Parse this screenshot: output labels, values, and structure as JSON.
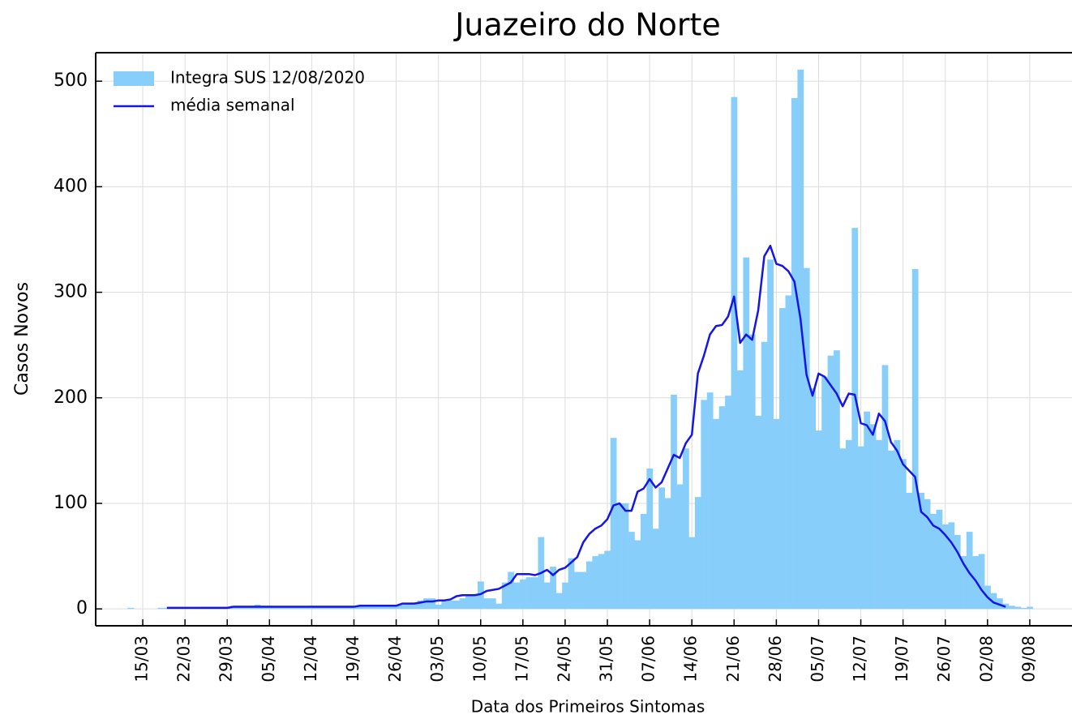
{
  "chart_data": {
    "type": "bar_line",
    "title": "Juazeiro do Norte",
    "xlabel": "Data dos Primeiros Sintomas",
    "ylabel": "Casos Novos",
    "categories": [
      null,
      null,
      "15/03",
      null,
      null,
      null,
      null,
      null,
      null,
      "22/03",
      null,
      null,
      null,
      null,
      null,
      null,
      "29/03",
      null,
      null,
      null,
      null,
      null,
      null,
      "05/04",
      null,
      null,
      null,
      null,
      null,
      null,
      "12/04",
      null,
      null,
      null,
      null,
      null,
      null,
      "19/04",
      null,
      null,
      null,
      null,
      null,
      null,
      "26/04",
      null,
      null,
      null,
      null,
      null,
      null,
      "03/05",
      null,
      null,
      null,
      null,
      null,
      null,
      "10/05",
      null,
      null,
      null,
      null,
      null,
      null,
      "17/05",
      null,
      null,
      null,
      null,
      null,
      null,
      "24/05",
      null,
      null,
      null,
      null,
      null,
      null,
      "31/05",
      null,
      null,
      null,
      null,
      null,
      null,
      "07/06",
      null,
      null,
      null,
      null,
      null,
      null,
      "14/06",
      null,
      null,
      null,
      null,
      null,
      null,
      "21/06",
      null,
      null,
      null,
      null,
      null,
      null,
      "28/06",
      null,
      null,
      null,
      null,
      null,
      null,
      "05/07",
      null,
      null,
      null,
      null,
      null,
      null,
      "12/07",
      null,
      null,
      null,
      null,
      null,
      null,
      "19/07",
      null,
      null,
      null,
      null,
      null,
      null,
      "26/07",
      null,
      null,
      null,
      null,
      null,
      null,
      "02/08",
      null,
      null,
      null,
      null,
      null,
      null,
      "09/08"
    ],
    "series": [
      {
        "name": "Integra SUS 12/08/2020",
        "kind": "bar",
        "color": "#87cefa",
        "values": [
          1,
          0,
          0,
          0,
          0,
          1,
          1,
          1,
          1,
          1,
          1,
          1,
          2,
          2,
          2,
          2,
          2,
          3,
          3,
          3,
          3,
          4,
          3,
          3,
          2,
          2,
          2,
          2,
          2,
          2,
          3,
          3,
          3,
          3,
          3,
          3,
          3,
          3,
          3,
          4,
          4,
          3,
          3,
          3,
          3,
          4,
          5,
          6,
          8,
          10,
          10,
          4,
          7,
          8,
          8,
          10,
          12,
          14,
          26,
          10,
          10,
          5,
          25,
          35,
          25,
          28,
          30,
          30,
          68,
          25,
          40,
          15,
          25,
          48,
          35,
          35,
          45,
          50,
          52,
          55,
          162,
          100,
          100,
          73,
          65,
          90,
          133,
          76,
          115,
          105,
          203,
          118,
          152,
          68,
          106,
          198,
          205,
          180,
          192,
          202,
          485,
          226,
          333,
          260,
          183,
          253,
          331,
          180,
          285,
          297,
          484,
          511,
          323,
          209,
          169,
          220,
          240,
          245,
          152,
          160,
          361,
          154,
          187,
          175,
          160,
          231,
          150,
          160,
          142,
          110,
          322,
          110,
          104,
          90,
          94,
          80,
          82,
          70,
          50,
          73,
          50,
          52,
          22,
          15,
          10,
          5,
          3,
          2,
          1,
          2
        ]
      },
      {
        "name": "média  semanal",
        "kind": "line",
        "color": "#1515e6",
        "values": [
          null,
          null,
          null,
          null,
          null,
          null,
          1,
          1,
          1,
          1,
          1,
          1,
          1,
          1,
          1,
          1,
          1,
          2,
          2,
          2,
          2,
          2,
          2,
          2,
          2,
          2,
          2,
          2,
          2,
          2,
          2,
          2,
          2,
          2,
          2,
          2,
          2,
          2,
          3,
          3,
          3,
          3,
          3,
          3,
          3,
          5,
          5,
          5,
          6,
          7,
          7,
          8,
          8,
          9,
          12,
          13,
          13,
          13,
          14,
          17,
          18,
          19,
          22,
          25,
          33,
          33,
          33,
          32,
          34,
          37,
          32,
          37,
          39,
          44,
          49,
          63,
          71,
          76,
          79,
          85,
          98,
          100,
          93,
          93,
          111,
          114,
          123,
          115,
          120,
          133,
          146,
          143,
          157,
          165,
          223,
          240,
          260,
          268,
          269,
          277,
          296,
          252,
          260,
          255,
          283,
          334,
          344,
          327,
          325,
          320,
          310,
          275,
          222,
          202,
          223,
          220,
          212,
          204,
          192,
          204,
          203,
          176,
          174,
          165,
          185,
          178,
          158,
          150,
          137,
          131,
          125,
          92,
          87,
          79,
          76,
          70,
          63,
          54,
          43,
          34,
          27,
          18,
          11,
          6,
          4,
          2,
          null,
          null,
          null,
          null
        ]
      }
    ],
    "ylim": [
      -16,
      527
    ],
    "yticks": [
      0,
      100,
      200,
      300,
      400,
      500
    ],
    "grid": true,
    "legend": "upper left"
  }
}
